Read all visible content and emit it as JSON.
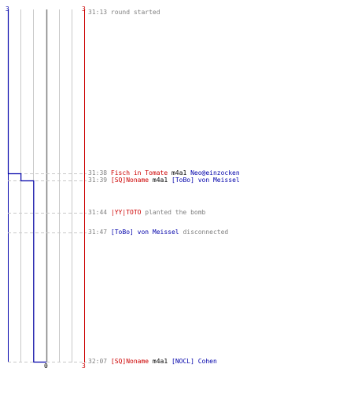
{
  "colors": {
    "red_team": "#cc0000",
    "blue_team": "#0000aa",
    "time": "#808080",
    "grid": "#c8c8c8",
    "center": "#808080",
    "plain": "#000000"
  },
  "axis": {
    "top_left": "3",
    "top_right": "3",
    "bottom_center": "0",
    "bottom_right": "3"
  },
  "chart_data": {
    "type": "line",
    "x_min": -3,
    "x_max": 3,
    "steps": [
      {
        "time": "31:13",
        "balance": -3
      },
      {
        "time": "31:38",
        "balance": -2
      },
      {
        "time": "31:39",
        "balance": -1
      },
      {
        "time": "32:07",
        "balance": 0
      }
    ]
  },
  "events": [
    {
      "time": "31:13",
      "parts": [
        {
          "text": "round started",
          "color": "time"
        }
      ]
    },
    {
      "time": "31:38",
      "parts": [
        {
          "text": "Fisch in Tomate",
          "color": "red_team"
        },
        {
          "text": " m4a1 ",
          "color": "plain"
        },
        {
          "text": "Neo@einzocken",
          "color": "blue_team"
        }
      ]
    },
    {
      "time": "31:39",
      "parts": [
        {
          "text": "[SQ]Noname",
          "color": "red_team"
        },
        {
          "text": " m4a1 ",
          "color": "plain"
        },
        {
          "text": "[ToBo] von Meissel",
          "color": "blue_team"
        }
      ]
    },
    {
      "time": "31:44",
      "parts": [
        {
          "text": "|YY|TOTO",
          "color": "red_team"
        },
        {
          "text": " planted the bomb",
          "color": "time"
        }
      ]
    },
    {
      "time": "31:47",
      "parts": [
        {
          "text": "[ToBo] von Meissel",
          "color": "blue_team"
        },
        {
          "text": " disconnected",
          "color": "time"
        }
      ]
    },
    {
      "time": "32:07",
      "parts": [
        {
          "text": "[SQ]Noname",
          "color": "red_team"
        },
        {
          "text": " m4a1 ",
          "color": "plain"
        },
        {
          "text": "[NOCL] Cohen",
          "color": "blue_team"
        }
      ]
    }
  ]
}
